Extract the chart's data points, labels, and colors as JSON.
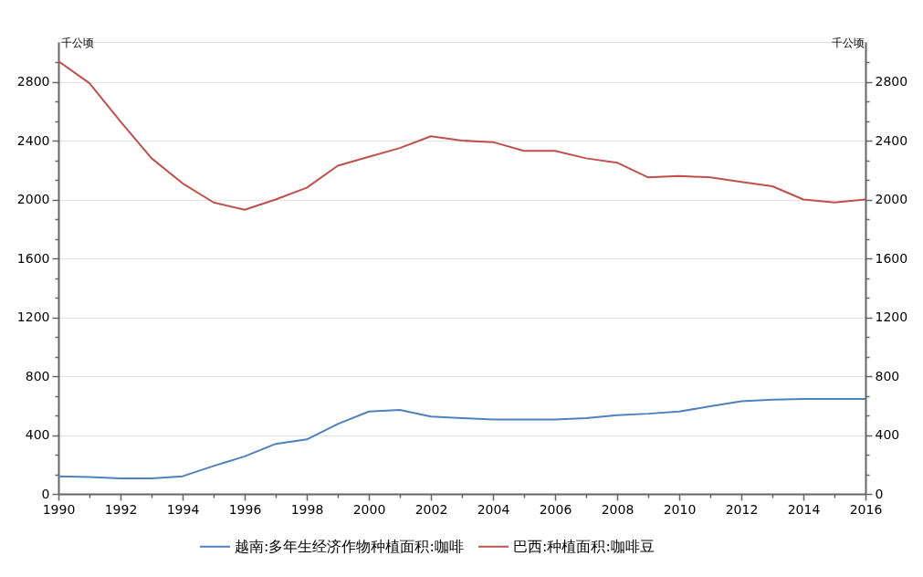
{
  "chart_data": {
    "type": "line",
    "ylabel": "千公顷",
    "y2label": "千公顷",
    "x": [
      1990,
      1991,
      1992,
      1993,
      1994,
      1995,
      1996,
      1997,
      1998,
      1999,
      2000,
      2001,
      2002,
      2003,
      2004,
      2005,
      2006,
      2007,
      2008,
      2009,
      2010,
      2011,
      2012,
      2013,
      2014,
      2015,
      2016
    ],
    "series": [
      {
        "name": "越南:多年生经济作物种植面积:咖啡",
        "color": "#4f81bd",
        "values": [
          120,
          115,
          105,
          105,
          120,
          190,
          255,
          340,
          370,
          475,
          560,
          570,
          525,
          515,
          505,
          505,
          505,
          515,
          535,
          545,
          560,
          595,
          630,
          640,
          645,
          645,
          645
        ]
      },
      {
        "name": "巴西:种植面积:咖啡豆",
        "color": "#c0504d",
        "axis": "y2",
        "values": [
          2940,
          2790,
          2530,
          2280,
          2110,
          1980,
          1930,
          2000,
          2080,
          2230,
          2290,
          2350,
          2430,
          2400,
          2390,
          2330,
          2330,
          2280,
          2250,
          2150,
          2160,
          2150,
          2120,
          2090,
          2000,
          1980,
          2000
        ]
      }
    ],
    "xlim": [
      1990,
      2016
    ],
    "xticks": [
      1990,
      {
        "value": 1991,
        "label": null
      },
      1992,
      {
        "value": 1993,
        "label": null
      },
      1994,
      {
        "value": 1995,
        "label": null
      },
      1996,
      {
        "value": 1997,
        "label": null
      },
      1998,
      {
        "value": 1999,
        "label": null
      },
      2000,
      {
        "value": 2001,
        "label": null
      },
      2002,
      {
        "value": 2003,
        "label": null
      },
      2004,
      {
        "value": 2005,
        "label": null
      },
      2006,
      {
        "value": 2007,
        "label": null
      },
      2008,
      {
        "value": 2009,
        "label": null
      },
      2010,
      {
        "value": 2011,
        "label": null
      },
      2012,
      {
        "value": 2013,
        "label": null
      },
      2014,
      {
        "value": 2015,
        "label": null
      },
      2016
    ],
    "ylim": [
      0,
      3070
    ],
    "yticks": [
      0,
      {
        "value": 133.3,
        "label": null
      },
      {
        "value": 266.7,
        "label": null
      },
      400,
      {
        "value": 533.3,
        "label": null
      },
      {
        "value": 666.7,
        "label": null
      },
      800,
      {
        "value": 933.3,
        "label": null
      },
      {
        "value": 1066.7,
        "label": null
      },
      1200,
      {
        "value": 1333.3,
        "label": null
      },
      {
        "value": 1466.7,
        "label": null
      },
      1600,
      {
        "value": 1733.3,
        "label": null
      },
      {
        "value": 1866.7,
        "label": null
      },
      2000,
      {
        "value": 2133.3,
        "label": null
      },
      {
        "value": 2266.7,
        "label": null
      },
      2400,
      {
        "value": 2533.3,
        "label": null
      },
      {
        "value": 2666.7,
        "label": null
      },
      2800,
      {
        "value": 2933.3,
        "label": null
      }
    ],
    "y2lim": [
      0,
      3070
    ],
    "y2ticks": [
      0,
      {
        "value": 133.3,
        "label": null
      },
      {
        "value": 266.7,
        "label": null
      },
      400,
      {
        "value": 533.3,
        "label": null
      },
      {
        "value": 666.7,
        "label": null
      },
      800,
      {
        "value": 933.3,
        "label": null
      },
      {
        "value": 1066.7,
        "label": null
      },
      1200,
      {
        "value": 1333.3,
        "label": null
      },
      {
        "value": 1466.7,
        "label": null
      },
      1600,
      {
        "value": 1733.3,
        "label": null
      },
      {
        "value": 1866.7,
        "label": null
      },
      2000,
      {
        "value": 2133.3,
        "label": null
      },
      {
        "value": 2266.7,
        "label": null
      },
      2400,
      {
        "value": 2533.3,
        "label": null
      },
      {
        "value": 2666.7,
        "label": null
      },
      2800,
      {
        "value": 2933.3,
        "label": null
      }
    ],
    "grid": "y",
    "legend": "bottom",
    "line_style": "solid"
  }
}
